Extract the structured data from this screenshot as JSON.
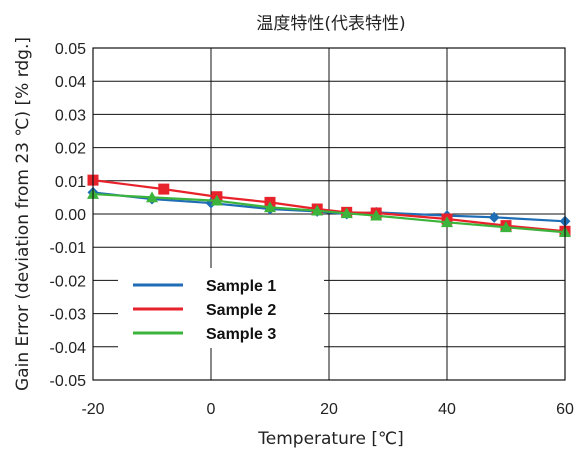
{
  "chart_data": {
    "type": "line",
    "title": "温度特性(代表特性)",
    "xlabel": "Temperature [℃]",
    "ylabel": "Gain Error (deviation from 23 ℃) [% rdg.]",
    "xlim": [
      -20,
      60
    ],
    "ylim": [
      -0.05,
      0.05
    ],
    "x_ticks": [
      "-20",
      "0",
      "20",
      "40",
      "60"
    ],
    "y_ticks": [
      "0.05",
      "0.04",
      "0.03",
      "0.02",
      "0.01",
      "0.00",
      "-0.01",
      "-0.02",
      "-0.03",
      "-0.04",
      "-0.05"
    ],
    "grid": true,
    "legend_position": "bottom-left",
    "series": [
      {
        "name": "Sample 1",
        "color": "#1f6db5",
        "marker": "diamond",
        "x": [
          -20,
          -10,
          0,
          10,
          18,
          23,
          28,
          40,
          48,
          60
        ],
        "y": [
          0.0065,
          0.0045,
          0.0033,
          0.0015,
          0.0008,
          0.0,
          0.0005,
          -0.0005,
          -0.001,
          -0.0022
        ]
      },
      {
        "name": "Sample 2",
        "color": "#e8222b",
        "marker": "square",
        "x": [
          -20,
          -8,
          1,
          10,
          18,
          23,
          28,
          40,
          50,
          60
        ],
        "y": [
          0.0102,
          0.0075,
          0.0052,
          0.0035,
          0.0015,
          0.0005,
          0.0003,
          -0.0015,
          -0.0035,
          -0.0052
        ]
      },
      {
        "name": "Sample 3",
        "color": "#3cb43c",
        "marker": "triangle",
        "x": [
          -20,
          -10,
          1,
          10,
          18,
          23,
          28,
          40,
          50,
          60
        ],
        "y": [
          0.006,
          0.005,
          0.004,
          0.002,
          0.001,
          0.0002,
          -0.0005,
          -0.0025,
          -0.004,
          -0.0055
        ]
      }
    ]
  }
}
